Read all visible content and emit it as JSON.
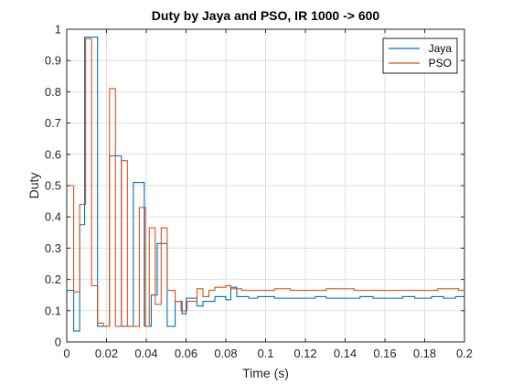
{
  "chart_data": {
    "type": "line",
    "title": "Duty by Jaya and PSO, IR 1000 -> 600",
    "xlabel": "Time (s)",
    "ylabel": "Duty",
    "xlim": [
      0,
      0.2
    ],
    "ylim": [
      0,
      1
    ],
    "x_ticks": [
      0,
      0.02,
      0.04,
      0.06,
      0.08,
      0.1,
      0.12,
      0.14,
      0.16,
      0.18,
      0.2
    ],
    "x_tick_labels": [
      "0",
      "0.02",
      "0.04",
      "0.06",
      "0.08",
      "0.1",
      "0.12",
      "0.14",
      "0.16",
      "0.18",
      "0.2"
    ],
    "y_ticks": [
      0,
      0.1,
      0.2,
      0.3,
      0.4,
      0.5,
      0.6,
      0.7,
      0.8,
      0.9,
      1
    ],
    "y_tick_labels": [
      "0",
      "0.1",
      "0.2",
      "0.3",
      "0.4",
      "0.5",
      "0.6",
      "0.7",
      "0.8",
      "0.9",
      "1"
    ],
    "grid": true,
    "legend_position": "top-right",
    "series": [
      {
        "name": "Jaya",
        "color": "#0072BD",
        "step": true,
        "points": [
          [
            0.0,
            0.165
          ],
          [
            0.0035,
            0.035
          ],
          [
            0.0065,
            0.375
          ],
          [
            0.009,
            0.975
          ],
          [
            0.0155,
            0.05
          ],
          [
            0.0215,
            0.595
          ],
          [
            0.0275,
            0.05
          ],
          [
            0.0335,
            0.51
          ],
          [
            0.039,
            0.05
          ],
          [
            0.0425,
            0.15
          ],
          [
            0.0455,
            0.315
          ],
          [
            0.0505,
            0.05
          ],
          [
            0.0545,
            0.13
          ],
          [
            0.058,
            0.09
          ],
          [
            0.06,
            0.14
          ],
          [
            0.0655,
            0.115
          ],
          [
            0.0685,
            0.13
          ],
          [
            0.0745,
            0.145
          ],
          [
            0.08,
            0.135
          ],
          [
            0.0825,
            0.175
          ],
          [
            0.0855,
            0.145
          ],
          [
            0.0915,
            0.14
          ],
          [
            0.096,
            0.145
          ],
          [
            0.1045,
            0.14
          ],
          [
            0.118,
            0.14
          ],
          [
            0.125,
            0.145
          ],
          [
            0.1305,
            0.14
          ],
          [
            0.1475,
            0.145
          ],
          [
            0.154,
            0.14
          ],
          [
            0.169,
            0.145
          ],
          [
            0.175,
            0.14
          ],
          [
            0.1835,
            0.145
          ],
          [
            0.1895,
            0.14
          ],
          [
            0.1955,
            0.145
          ]
        ]
      },
      {
        "name": "PSO",
        "color": "#D95319",
        "step": true,
        "points": [
          [
            0.0,
            0.5
          ],
          [
            0.0035,
            0.16
          ],
          [
            0.0065,
            0.44
          ],
          [
            0.0095,
            0.97
          ],
          [
            0.0125,
            0.18
          ],
          [
            0.0155,
            0.06
          ],
          [
            0.0185,
            0.05
          ],
          [
            0.0215,
            0.81
          ],
          [
            0.0245,
            0.05
          ],
          [
            0.0275,
            0.58
          ],
          [
            0.0305,
            0.05
          ],
          [
            0.0325,
            0.05
          ],
          [
            0.0345,
            0.05
          ],
          [
            0.0365,
            0.43
          ],
          [
            0.0395,
            0.05
          ],
          [
            0.0415,
            0.365
          ],
          [
            0.0445,
            0.12
          ],
          [
            0.0475,
            0.365
          ],
          [
            0.0505,
            0.165
          ],
          [
            0.0545,
            0.13
          ],
          [
            0.0575,
            0.1
          ],
          [
            0.0605,
            0.13
          ],
          [
            0.0655,
            0.17
          ],
          [
            0.0685,
            0.145
          ],
          [
            0.0715,
            0.165
          ],
          [
            0.0745,
            0.175
          ],
          [
            0.08,
            0.18
          ],
          [
            0.0825,
            0.17
          ],
          [
            0.088,
            0.165
          ],
          [
            0.0915,
            0.165
          ],
          [
            0.1045,
            0.17
          ],
          [
            0.1125,
            0.165
          ],
          [
            0.12,
            0.165
          ],
          [
            0.1305,
            0.17
          ],
          [
            0.1445,
            0.165
          ],
          [
            0.1505,
            0.165
          ],
          [
            0.1615,
            0.165
          ],
          [
            0.174,
            0.165
          ],
          [
            0.1865,
            0.17
          ],
          [
            0.197,
            0.165
          ]
        ]
      }
    ]
  }
}
